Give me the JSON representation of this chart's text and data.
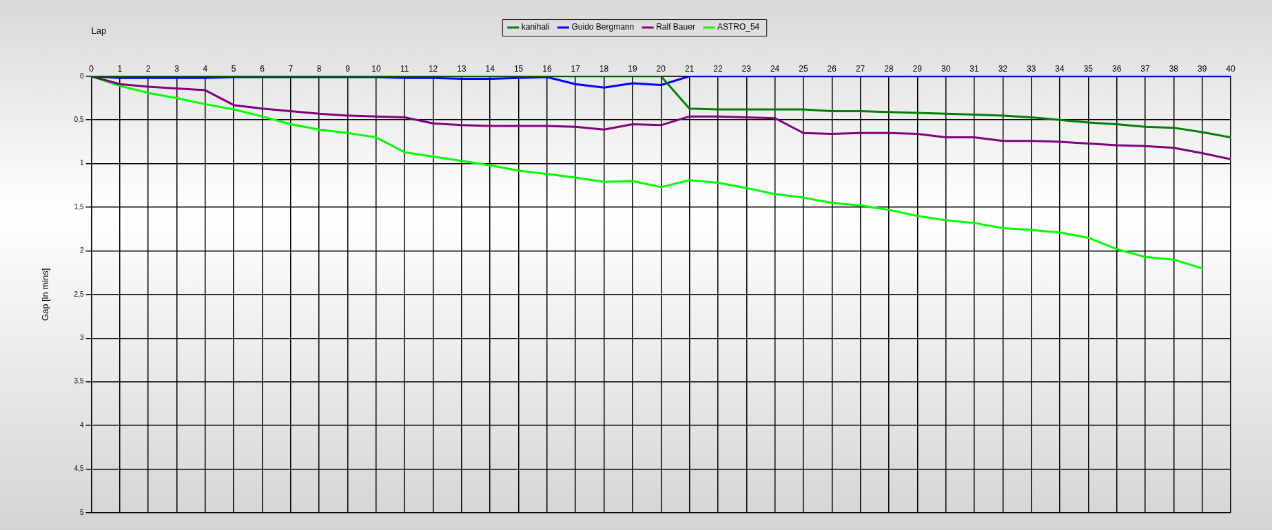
{
  "chart_data": {
    "type": "line",
    "xlabel": "Lap",
    "ylabel": "Gap [in mins]",
    "x": [
      0,
      1,
      2,
      3,
      4,
      5,
      6,
      7,
      8,
      9,
      10,
      11,
      12,
      13,
      14,
      15,
      16,
      17,
      18,
      19,
      20,
      21,
      22,
      23,
      24,
      25,
      26,
      27,
      28,
      29,
      30,
      31,
      32,
      33,
      34,
      35,
      36,
      37,
      38,
      39,
      40
    ],
    "xlim": [
      0,
      40
    ],
    "xticks": [
      0,
      1,
      2,
      3,
      4,
      5,
      6,
      7,
      8,
      9,
      10,
      11,
      12,
      13,
      14,
      15,
      16,
      17,
      18,
      19,
      20,
      21,
      22,
      23,
      24,
      25,
      26,
      27,
      28,
      29,
      30,
      31,
      32,
      33,
      34,
      35,
      36,
      37,
      38,
      39,
      40
    ],
    "ylim": [
      5,
      0
    ],
    "yticks": [
      0,
      {
        "value": 0.5,
        "label": "0,5"
      },
      1,
      {
        "value": 1.5,
        "label": "1,5"
      },
      2,
      {
        "value": 2.5,
        "label": "2,5"
      },
      3,
      {
        "value": 3.5,
        "label": "3,5"
      },
      4,
      {
        "value": 4.5,
        "label": "4,5"
      },
      5
    ],
    "grid": true,
    "legend": "top",
    "marker": "none",
    "line_style": "solid",
    "series": [
      {
        "name": "kanihali",
        "color": "#008000",
        "values": [
          0,
          0,
          0,
          0,
          0,
          0,
          0,
          0,
          0,
          0,
          0,
          0,
          0,
          0,
          0,
          0,
          0,
          0,
          0,
          0,
          0,
          0.37,
          0.38,
          0.38,
          0.38,
          0.38,
          0.4,
          0.4,
          0.41,
          0.42,
          0.43,
          0.44,
          0.45,
          0.47,
          0.5,
          0.53,
          0.55,
          0.58,
          0.59,
          0.64,
          0.7
        ]
      },
      {
        "name": "Guido Bergmann",
        "color": "#0000ff",
        "values": [
          0,
          0.02,
          0.02,
          0.02,
          0.02,
          0.01,
          0.01,
          0.01,
          0.01,
          0.01,
          0.01,
          0.02,
          0.02,
          0.03,
          0.03,
          0.02,
          0.01,
          0.09,
          0.13,
          0.08,
          0.1,
          0,
          0,
          0,
          0,
          0,
          0,
          0,
          0,
          0,
          0,
          0,
          0,
          0,
          0,
          0,
          0,
          0,
          0,
          0,
          0
        ]
      },
      {
        "name": "Ralf Bauer",
        "color": "#800080",
        "values": [
          0,
          0.09,
          0.12,
          0.14,
          0.16,
          0.33,
          0.37,
          0.4,
          0.43,
          0.45,
          0.46,
          0.47,
          0.54,
          0.56,
          0.57,
          0.57,
          0.57,
          0.58,
          0.61,
          0.55,
          0.56,
          0.46,
          0.46,
          0.47,
          0.48,
          0.65,
          0.66,
          0.65,
          0.65,
          0.66,
          0.7,
          0.7,
          0.74,
          0.74,
          0.75,
          0.77,
          0.79,
          0.8,
          0.82,
          0.88,
          0.95
        ]
      },
      {
        "name": "ASTRO_54",
        "color": "#00ff00",
        "values": [
          0,
          0.11,
          0.19,
          0.25,
          0.32,
          0.38,
          0.46,
          0.55,
          0.61,
          0.65,
          0.7,
          0.87,
          0.92,
          0.97,
          1.02,
          1.08,
          1.12,
          1.16,
          1.21,
          1.2,
          1.27,
          1.19,
          1.22,
          1.28,
          1.35,
          1.39,
          1.45,
          1.48,
          1.53,
          1.6,
          1.65,
          1.68,
          1.74,
          1.76,
          1.79,
          1.85,
          1.98,
          2.07,
          2.1,
          2.2,
          null
        ]
      }
    ]
  }
}
